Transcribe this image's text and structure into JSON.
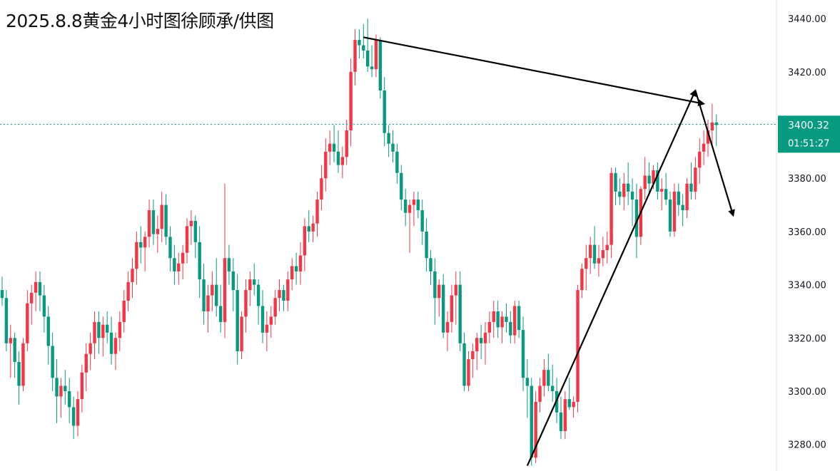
{
  "header": {
    "title": "2025.8.8黄金4小时图徐顾承/供图"
  },
  "chart_data": {
    "type": "candlestick",
    "title": "2025.8.8黄金4小时图徐顾承/供图",
    "ylim": [
      3270,
      3447
    ],
    "y_ticks": [
      "3440.00",
      "3420.00",
      "3400.00",
      "3380.00",
      "3360.00",
      "3340.00",
      "3320.00",
      "3300.00",
      "3280.00"
    ],
    "y_tick_values": [
      3440,
      3420,
      3400,
      3380,
      3360,
      3340,
      3320,
      3300,
      3280
    ],
    "grid": false,
    "colors": {
      "up": "#f23645",
      "down": "#089981",
      "price_tag": "#089981",
      "annotation": "#000000"
    },
    "current_price": {
      "value": 3400.32,
      "label": "3400.32",
      "countdown": "01:51:27"
    },
    "candles": [
      [
        3338,
        3343,
        3332,
        3335
      ],
      [
        3335,
        3338,
        3315,
        3318
      ],
      [
        3318,
        3325,
        3305,
        3320
      ],
      [
        3320,
        3322,
        3305,
        3311
      ],
      [
        3311,
        3315,
        3295,
        3302
      ],
      [
        3302,
        3320,
        3300,
        3318
      ],
      [
        3318,
        3338,
        3315,
        3333
      ],
      [
        3333,
        3340,
        3325,
        3337
      ],
      [
        3337,
        3345,
        3330,
        3341
      ],
      [
        3341,
        3345,
        3330,
        3336
      ],
      [
        3336,
        3340,
        3322,
        3328
      ],
      [
        3328,
        3332,
        3310,
        3317
      ],
      [
        3317,
        3322,
        3300,
        3305
      ],
      [
        3305,
        3312,
        3288,
        3298
      ],
      [
        3298,
        3305,
        3290,
        3302
      ],
      [
        3302,
        3308,
        3295,
        3300
      ],
      [
        3300,
        3305,
        3288,
        3294
      ],
      [
        3294,
        3298,
        3282,
        3287
      ],
      [
        3287,
        3300,
        3283,
        3297
      ],
      [
        3297,
        3310,
        3292,
        3307
      ],
      [
        3307,
        3318,
        3300,
        3314
      ],
      [
        3314,
        3322,
        3308,
        3318
      ],
      [
        3318,
        3330,
        3312,
        3326
      ],
      [
        3326,
        3330,
        3314,
        3320
      ],
      [
        3320,
        3328,
        3313,
        3325
      ],
      [
        3325,
        3330,
        3318,
        3322
      ],
      [
        3322,
        3328,
        3310,
        3314
      ],
      [
        3314,
        3322,
        3308,
        3320
      ],
      [
        3320,
        3330,
        3315,
        3326
      ],
      [
        3326,
        3338,
        3322,
        3334
      ],
      [
        3334,
        3345,
        3330,
        3341
      ],
      [
        3341,
        3350,
        3335,
        3346
      ],
      [
        3346,
        3360,
        3340,
        3356
      ],
      [
        3356,
        3362,
        3348,
        3354
      ],
      [
        3354,
        3360,
        3345,
        3358
      ],
      [
        3358,
        3372,
        3354,
        3368
      ],
      [
        3368,
        3372,
        3355,
        3359
      ],
      [
        3359,
        3366,
        3352,
        3361
      ],
      [
        3361,
        3375,
        3356,
        3370
      ],
      [
        3370,
        3374,
        3355,
        3358
      ],
      [
        3358,
        3362,
        3345,
        3350
      ],
      [
        3350,
        3355,
        3340,
        3345
      ],
      [
        3345,
        3352,
        3340,
        3348
      ],
      [
        3348,
        3355,
        3342,
        3352
      ],
      [
        3352,
        3365,
        3348,
        3362
      ],
      [
        3362,
        3368,
        3355,
        3364
      ],
      [
        3364,
        3366,
        3350,
        3356
      ],
      [
        3356,
        3362,
        3335,
        3342
      ],
      [
        3342,
        3348,
        3325,
        3330
      ],
      [
        3330,
        3340,
        3322,
        3336
      ],
      [
        3336,
        3345,
        3330,
        3340
      ],
      [
        3340,
        3350,
        3328,
        3332
      ],
      [
        3332,
        3340,
        3322,
        3326
      ],
      [
        3326,
        3378,
        3320,
        3350
      ],
      [
        3350,
        3355,
        3340,
        3345
      ],
      [
        3345,
        3350,
        3330,
        3338
      ],
      [
        3338,
        3344,
        3310,
        3315
      ],
      [
        3315,
        3330,
        3312,
        3328
      ],
      [
        3328,
        3342,
        3322,
        3338
      ],
      [
        3338,
        3345,
        3332,
        3342
      ],
      [
        3342,
        3348,
        3336,
        3340
      ],
      [
        3340,
        3342,
        3325,
        3332
      ],
      [
        3332,
        3338,
        3318,
        3322
      ],
      [
        3322,
        3330,
        3315,
        3325
      ],
      [
        3325,
        3332,
        3320,
        3328
      ],
      [
        3328,
        3338,
        3325,
        3335
      ],
      [
        3335,
        3342,
        3330,
        3338
      ],
      [
        3338,
        3340,
        3330,
        3334
      ],
      [
        3334,
        3345,
        3330,
        3342
      ],
      [
        3342,
        3350,
        3338,
        3347
      ],
      [
        3347,
        3352,
        3340,
        3345
      ],
      [
        3345,
        3356,
        3340,
        3351
      ],
      [
        3351,
        3365,
        3345,
        3362
      ],
      [
        3362,
        3368,
        3356,
        3360
      ],
      [
        3360,
        3366,
        3356,
        3363
      ],
      [
        3363,
        3375,
        3358,
        3372
      ],
      [
        3372,
        3385,
        3368,
        3380
      ],
      [
        3380,
        3395,
        3375,
        3390
      ],
      [
        3390,
        3398,
        3385,
        3393
      ],
      [
        3393,
        3400,
        3386,
        3390
      ],
      [
        3390,
        3398,
        3382,
        3385
      ],
      [
        3385,
        3392,
        3380,
        3388
      ],
      [
        3388,
        3402,
        3385,
        3398
      ],
      [
        3398,
        3425,
        3392,
        3420
      ],
      [
        3420,
        3436,
        3415,
        3432
      ],
      [
        3432,
        3436,
        3425,
        3430
      ],
      [
        3430,
        3438,
        3425,
        3428
      ],
      [
        3428,
        3440,
        3420,
        3422
      ],
      [
        3422,
        3430,
        3418,
        3421
      ],
      [
        3421,
        3434,
        3418,
        3432
      ],
      [
        3432,
        3433,
        3410,
        3413
      ],
      [
        3413,
        3418,
        3392,
        3397
      ],
      [
        3397,
        3400,
        3388,
        3393
      ],
      [
        3393,
        3398,
        3386,
        3390
      ],
      [
        3390,
        3393,
        3378,
        3382
      ],
      [
        3382,
        3385,
        3368,
        3372
      ],
      [
        3372,
        3376,
        3362,
        3367
      ],
      [
        3367,
        3372,
        3352,
        3370
      ],
      [
        3370,
        3375,
        3362,
        3372
      ],
      [
        3372,
        3375,
        3365,
        3368
      ],
      [
        3368,
        3372,
        3355,
        3360
      ],
      [
        3360,
        3365,
        3345,
        3350
      ],
      [
        3350,
        3353,
        3340,
        3345
      ],
      [
        3345,
        3350,
        3325,
        3335
      ],
      [
        3335,
        3342,
        3328,
        3340
      ],
      [
        3340,
        3344,
        3320,
        3322
      ],
      [
        3322,
        3330,
        3315,
        3326
      ],
      [
        3326,
        3340,
        3322,
        3336
      ],
      [
        3336,
        3345,
        3325,
        3340
      ],
      [
        3340,
        3345,
        3315,
        3318
      ],
      [
        3318,
        3322,
        3300,
        3302
      ],
      [
        3302,
        3315,
        3300,
        3312
      ],
      [
        3312,
        3318,
        3305,
        3315
      ],
      [
        3315,
        3322,
        3308,
        3320
      ],
      [
        3320,
        3325,
        3312,
        3318
      ],
      [
        3318,
        3326,
        3310,
        3322
      ],
      [
        3322,
        3330,
        3318,
        3326
      ],
      [
        3326,
        3334,
        3320,
        3330
      ],
      [
        3330,
        3334,
        3320,
        3324
      ],
      [
        3324,
        3330,
        3318,
        3328
      ],
      [
        3328,
        3333,
        3322,
        3326
      ],
      [
        3326,
        3330,
        3318,
        3321
      ],
      [
        3321,
        3334,
        3318,
        3332
      ],
      [
        3332,
        3334,
        3320,
        3323
      ],
      [
        3323,
        3328,
        3300,
        3305
      ],
      [
        3305,
        3312,
        3290,
        3302
      ],
      [
        3302,
        3305,
        3272,
        3275
      ],
      [
        3275,
        3300,
        3273,
        3296
      ],
      [
        3296,
        3305,
        3292,
        3302
      ],
      [
        3302,
        3312,
        3298,
        3308
      ],
      [
        3308,
        3314,
        3300,
        3302
      ],
      [
        3302,
        3310,
        3296,
        3300
      ],
      [
        3300,
        3305,
        3288,
        3292
      ],
      [
        3292,
        3298,
        3282,
        3285
      ],
      [
        3285,
        3300,
        3282,
        3297
      ],
      [
        3297,
        3305,
        3293,
        3294
      ],
      [
        3294,
        3298,
        3290,
        3296
      ],
      [
        3296,
        3340,
        3292,
        3338
      ],
      [
        3338,
        3348,
        3335,
        3346
      ],
      [
        3346,
        3355,
        3338,
        3350
      ],
      [
        3350,
        3358,
        3344,
        3355
      ],
      [
        3355,
        3362,
        3346,
        3348
      ],
      [
        3348,
        3355,
        3343,
        3350
      ],
      [
        3350,
        3358,
        3347,
        3353
      ],
      [
        3353,
        3360,
        3348,
        3355
      ],
      [
        3355,
        3384,
        3350,
        3382
      ],
      [
        3382,
        3384,
        3370,
        3375
      ],
      [
        3375,
        3380,
        3370,
        3373
      ],
      [
        3373,
        3382,
        3368,
        3378
      ],
      [
        3378,
        3386,
        3370,
        3375
      ],
      [
        3375,
        3380,
        3362,
        3372
      ],
      [
        3372,
        3378,
        3350,
        3358
      ],
      [
        3358,
        3377,
        3355,
        3376
      ],
      [
        3376,
        3388,
        3372,
        3381
      ],
      [
        3381,
        3386,
        3374,
        3378
      ],
      [
        3378,
        3385,
        3376,
        3383
      ],
      [
        3383,
        3386,
        3372,
        3375
      ],
      [
        3375,
        3380,
        3368,
        3376
      ],
      [
        3376,
        3382,
        3370,
        3372
      ],
      [
        3372,
        3375,
        3358,
        3360
      ],
      [
        3360,
        3378,
        3358,
        3375
      ],
      [
        3375,
        3378,
        3366,
        3370
      ],
      [
        3370,
        3374,
        3362,
        3368
      ],
      [
        3368,
        3380,
        3365,
        3378
      ],
      [
        3378,
        3386,
        3372,
        3375
      ],
      [
        3375,
        3388,
        3372,
        3384
      ],
      [
        3384,
        3395,
        3378,
        3390
      ],
      [
        3390,
        3398,
        3385,
        3393
      ],
      [
        3393,
        3402,
        3388,
        3398
      ],
      [
        3398,
        3408,
        3392,
        3401
      ],
      [
        3401,
        3404,
        3392,
        3400
      ]
    ],
    "annotations": [
      {
        "type": "line",
        "from": [
          86,
          3433
        ],
        "to": [
          167,
          3408
        ]
      },
      {
        "type": "line",
        "from": [
          125,
          3272
        ],
        "to": [
          165,
          3413
        ]
      },
      {
        "type": "arrow",
        "from": [
          165,
          3413
        ],
        "to": [
          174,
          3366
        ]
      }
    ]
  }
}
